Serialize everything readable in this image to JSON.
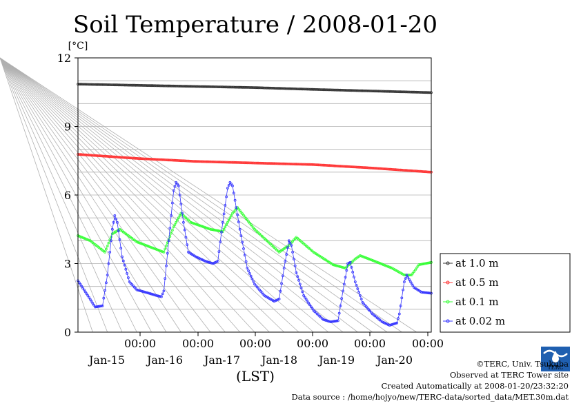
{
  "chart_data": {
    "type": "line",
    "title": "Soil Temperature / 2008-01-20",
    "ylabel": "[°C]",
    "xlabel": "(LST)",
    "ylim": [
      0,
      12
    ],
    "xlim": [
      0,
      144
    ],
    "y_ticks": [
      "0",
      "3",
      "6",
      "9",
      "12"
    ],
    "x_ticks": [
      {
        "time": "00:00",
        "date": "Jan-15"
      },
      {
        "time": "00:00",
        "date": "Jan-16"
      },
      {
        "time": "00:00",
        "date": "Jan-17"
      },
      {
        "time": "00:00",
        "date": "Jan-18"
      },
      {
        "time": "00:00",
        "date": "Jan-19"
      },
      {
        "time": "00:00",
        "date": "Jan-20"
      }
    ],
    "grid": true,
    "legend_position": "right",
    "series": [
      {
        "name": "at 1.0 m",
        "color": "#333333",
        "points": [
          [
            0,
            10.85
          ],
          [
            24,
            10.8
          ],
          [
            48,
            10.75
          ],
          [
            72,
            10.7
          ],
          [
            96,
            10.62
          ],
          [
            120,
            10.55
          ],
          [
            144,
            10.48
          ]
        ]
      },
      {
        "name": "at 0.5 m",
        "color": "#ff3333",
        "points": [
          [
            0,
            7.78
          ],
          [
            24,
            7.6
          ],
          [
            48,
            7.47
          ],
          [
            72,
            7.4
          ],
          [
            96,
            7.33
          ],
          [
            120,
            7.18
          ],
          [
            144,
            7.0
          ]
        ]
      },
      {
        "name": "at 0.1 m",
        "color": "#33ff33",
        "points": [
          [
            0,
            4.22
          ],
          [
            5,
            4.0
          ],
          [
            11,
            3.5
          ],
          [
            14,
            4.3
          ],
          [
            17,
            4.5
          ],
          [
            24,
            3.95
          ],
          [
            30,
            3.7
          ],
          [
            35,
            3.5
          ],
          [
            39,
            4.6
          ],
          [
            42,
            5.2
          ],
          [
            46,
            4.8
          ],
          [
            54,
            4.5
          ],
          [
            59,
            4.4
          ],
          [
            63,
            5.2
          ],
          [
            65,
            5.45
          ],
          [
            72,
            4.5
          ],
          [
            78,
            3.9
          ],
          [
            82,
            3.5
          ],
          [
            86,
            3.8
          ],
          [
            89,
            4.15
          ],
          [
            96,
            3.5
          ],
          [
            104,
            2.95
          ],
          [
            109,
            2.8
          ],
          [
            113,
            3.2
          ],
          [
            115,
            3.35
          ],
          [
            121,
            3.1
          ],
          [
            128,
            2.8
          ],
          [
            133,
            2.5
          ],
          [
            136,
            2.5
          ],
          [
            139,
            2.95
          ],
          [
            144,
            3.05
          ]
        ]
      },
      {
        "name": "at 0.02 m",
        "color": "#3333ff",
        "points": [
          [
            0,
            2.25
          ],
          [
            4,
            1.6
          ],
          [
            7,
            1.1
          ],
          [
            10,
            1.15
          ],
          [
            12,
            2.5
          ],
          [
            14,
            4.5
          ],
          [
            15,
            5.1
          ],
          [
            16,
            4.8
          ],
          [
            18,
            3.3
          ],
          [
            21,
            2.2
          ],
          [
            24,
            1.85
          ],
          [
            29,
            1.7
          ],
          [
            32,
            1.6
          ],
          [
            34,
            1.55
          ],
          [
            35,
            1.8
          ],
          [
            37,
            4.0
          ],
          [
            39,
            6.2
          ],
          [
            40,
            6.55
          ],
          [
            41,
            6.4
          ],
          [
            43,
            4.8
          ],
          [
            45,
            3.5
          ],
          [
            48,
            3.3
          ],
          [
            52,
            3.1
          ],
          [
            55,
            3.0
          ],
          [
            57,
            3.1
          ],
          [
            59,
            4.8
          ],
          [
            61,
            6.3
          ],
          [
            62,
            6.55
          ],
          [
            63,
            6.4
          ],
          [
            66,
            4.5
          ],
          [
            69,
            2.8
          ],
          [
            72,
            2.1
          ],
          [
            76,
            1.6
          ],
          [
            80,
            1.35
          ],
          [
            82,
            1.45
          ],
          [
            84,
            2.8
          ],
          [
            86,
            4.0
          ],
          [
            87,
            3.8
          ],
          [
            89,
            2.6
          ],
          [
            92,
            1.6
          ],
          [
            96,
            0.95
          ],
          [
            100,
            0.55
          ],
          [
            103,
            0.45
          ],
          [
            106,
            0.5
          ],
          [
            108,
            1.8
          ],
          [
            110,
            3.0
          ],
          [
            111,
            3.05
          ],
          [
            113,
            2.2
          ],
          [
            116,
            1.3
          ],
          [
            120,
            0.8
          ],
          [
            124,
            0.45
          ],
          [
            127,
            0.3
          ],
          [
            130,
            0.4
          ],
          [
            131,
            0.8
          ],
          [
            133,
            2.2
          ],
          [
            134,
            2.5
          ],
          [
            135,
            2.3
          ],
          [
            137,
            1.95
          ],
          [
            140,
            1.75
          ],
          [
            144,
            1.7
          ]
        ]
      }
    ]
  },
  "credits": {
    "copyright": "©TERC, Univ. Tsukuba",
    "observed": "Observed at TERC Tower site",
    "created": "Created Automatically at 2008-01-20/23:32:20",
    "source": "Data source : /home/hojyo/new/TERC-data/sorted_data/MET.30m.dat"
  },
  "logo": {
    "text": "TERC"
  }
}
